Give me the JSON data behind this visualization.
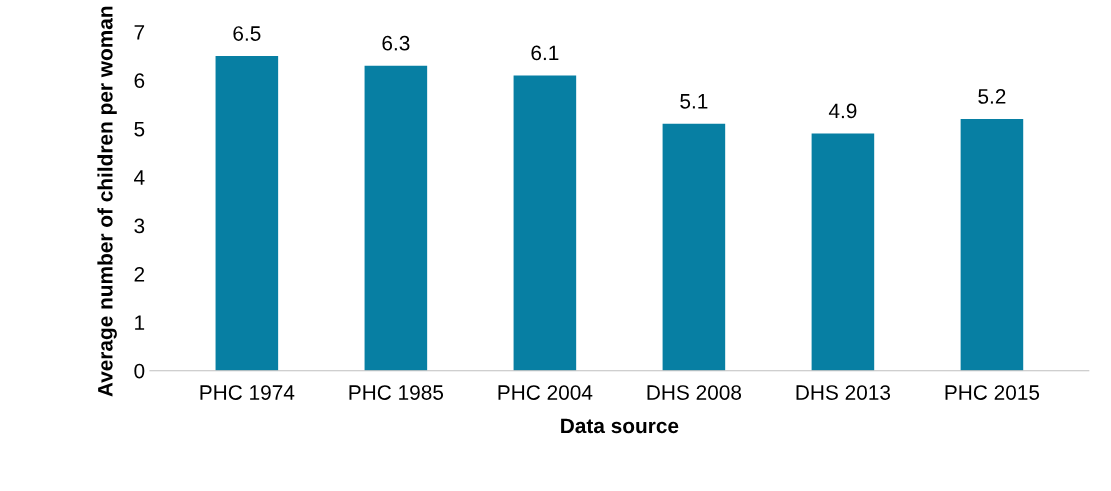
{
  "chart_data": {
    "type": "bar",
    "xlabel": "Data source",
    "ylabel": "Average number of children per woman",
    "categories": [
      "PHC 1974",
      "PHC 1985",
      "PHC 2004",
      "DHS 2008",
      "DHS 2013",
      "PHC 2015"
    ],
    "values": [
      6.5,
      6.3,
      6.1,
      5.1,
      4.9,
      5.2
    ],
    "color": "#077fa3",
    "ylim": [
      0,
      7
    ],
    "yticks": [
      0,
      1,
      2,
      3,
      4,
      5,
      6,
      7
    ],
    "grid": false,
    "data_labels": true
  }
}
